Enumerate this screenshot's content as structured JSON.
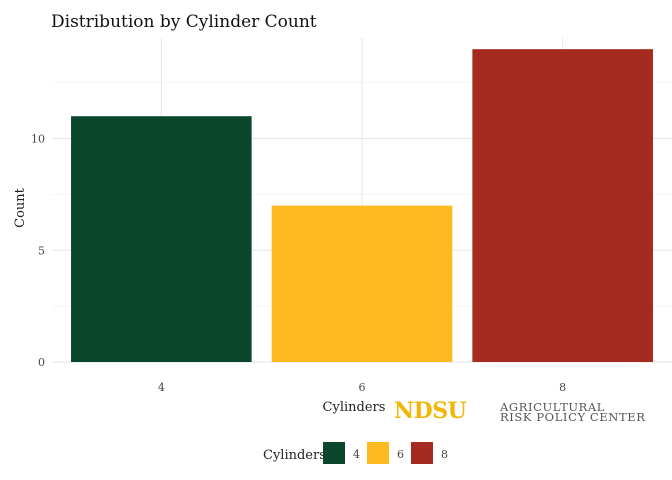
{
  "chart_data": {
    "type": "bar",
    "title": "Distribution by Cylinder Count",
    "xlabel": "Cylinders",
    "ylabel": "Count",
    "categories": [
      "4",
      "6",
      "8"
    ],
    "values": [
      11,
      7,
      14
    ],
    "colors": [
      "#0b472d",
      "#fdbb21",
      "#a52a1f"
    ],
    "yticks": [
      0,
      5,
      10
    ],
    "ylim": [
      0,
      14
    ],
    "grid": true,
    "legend": {
      "title": "Cylinders",
      "position": "bottom",
      "entries": [
        "4",
        "6",
        "8"
      ]
    }
  },
  "logo": {
    "text_main": "NDSU",
    "text_line1": "AGRICULTURAL",
    "text_line2": "RISK POLICY CENTER",
    "color_main": "#f2b705",
    "color_text": "#555555"
  }
}
